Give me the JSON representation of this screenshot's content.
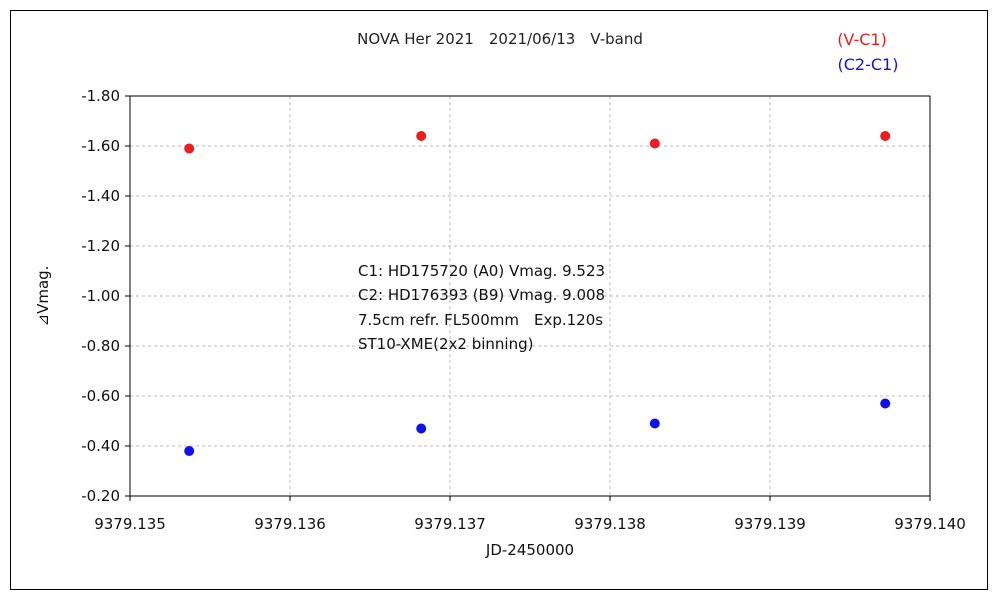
{
  "chart_data": {
    "type": "scatter",
    "title": "NOVA Her 2021　2021/06/13　V-band",
    "xlabel": "JD-2450000",
    "ylabel": "⊿Vmag.",
    "xlim": [
      9379.135,
      9379.14
    ],
    "ylim": [
      -1.8,
      -0.2
    ],
    "y_inverted": true,
    "x_ticks": [
      "9379.135",
      "9379.136",
      "9379.137",
      "9379.138",
      "9379.139",
      "9379.140"
    ],
    "y_ticks": [
      "-1.80",
      "-1.60",
      "-1.40",
      "-1.20",
      "-1.00",
      "-0.80",
      "-0.60",
      "-0.40",
      "-0.20"
    ],
    "grid": true,
    "legend_position": "top-right",
    "series": [
      {
        "name": "(V-C1)",
        "color": "#ee1c1c",
        "x": [
          9379.13537,
          9379.13682,
          9379.13828,
          9379.13972
        ],
        "y": [
          -1.59,
          -1.64,
          -1.61,
          -1.64
        ]
      },
      {
        "name": "(C2-C1)",
        "color": "#1010ee",
        "x": [
          9379.13537,
          9379.13682,
          9379.13828,
          9379.13972
        ],
        "y": [
          -0.38,
          -0.47,
          -0.49,
          -0.57
        ]
      }
    ],
    "annotations": [
      "C1: HD175720 (A0) Vmag. 9.523",
      "C2: HD176393 (B9) Vmag. 9.008",
      "7.5cm refr. FL500mm　Exp.120s",
      "ST10-XME(2x2 binning)"
    ]
  }
}
